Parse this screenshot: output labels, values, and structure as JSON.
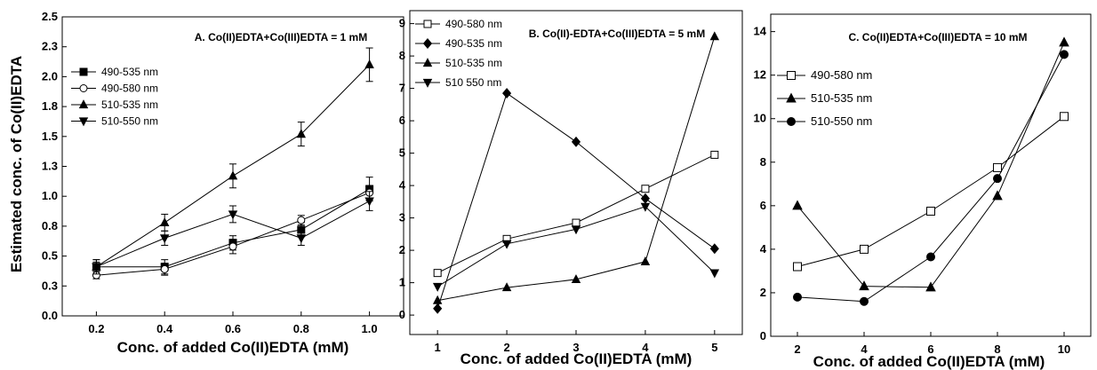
{
  "chart_data": [
    {
      "type": "line",
      "title": "A. Co(II)EDTA+Co(III)EDTA = 1 mM",
      "xlabel": "Conc. of added Co(II)EDTA (mM)",
      "ylabel": "Estimated conc. of Co(II)EDTA",
      "x": [
        0.2,
        0.4,
        0.6,
        0.8,
        1.0
      ],
      "xticks": [
        "0.2",
        "0.4",
        "0.6",
        "0.8",
        "1.0"
      ],
      "yticks": [
        "0.0",
        "0.3",
        "0.5",
        "0.8",
        "1.0",
        "1.3",
        "1.5",
        "1.8",
        "2.0",
        "2.3",
        "2.5"
      ],
      "xlim": [
        0.1,
        1.1
      ],
      "ylim": [
        0,
        2.5
      ],
      "legend_position": "left",
      "series": [
        {
          "name": "490-535 nm",
          "marker": "square-filled",
          "values": [
            0.41,
            0.41,
            0.61,
            0.72,
            1.06
          ],
          "errors": [
            0.06,
            0.06,
            0.06,
            0.06,
            0.1
          ]
        },
        {
          "name": "490-580 nm",
          "marker": "circle-open",
          "values": [
            0.34,
            0.39,
            0.58,
            0.8,
            1.03
          ],
          "errors": [
            0.03,
            0.05,
            0.06,
            0.04,
            0.06
          ]
        },
        {
          "name": "510-535 nm",
          "marker": "triangle-up-filled",
          "values": [
            0.41,
            0.78,
            1.17,
            1.52,
            2.1
          ],
          "errors": [
            0.06,
            0.07,
            0.1,
            0.1,
            0.14
          ]
        },
        {
          "name": "510-550 nm",
          "marker": "triangle-down-filled",
          "values": [
            0.41,
            0.65,
            0.85,
            0.65,
            0.96
          ],
          "errors": [
            0.04,
            0.06,
            0.07,
            0.06,
            0.08
          ]
        }
      ]
    },
    {
      "type": "line",
      "title": "B. Co(II)-EDTA+Co(III)EDTA = 5 mM",
      "xlabel": "Conc. of added Co(II)EDTA (mM)",
      "x": [
        1,
        2,
        3,
        4,
        5
      ],
      "xticks": [
        "1",
        "2",
        "3",
        "4",
        "5"
      ],
      "yticks": [
        "0",
        "1",
        "2",
        "3",
        "4",
        "5",
        "6",
        "7",
        "8",
        "9"
      ],
      "xlim": [
        0.6,
        5.4
      ],
      "ylim": [
        -0.6,
        9.4
      ],
      "legend_position": "top-left",
      "series": [
        {
          "name": "490-580 nm",
          "marker": "square-open",
          "values": [
            1.3,
            2.35,
            2.85,
            3.9,
            4.95
          ]
        },
        {
          "name": "490-535 nm",
          "marker": "diamond-filled",
          "values": [
            0.2,
            6.85,
            5.35,
            3.6,
            2.05
          ]
        },
        {
          "name": "510-535 nm",
          "marker": "triangle-up-filled",
          "values": [
            0.45,
            0.85,
            1.1,
            1.65,
            8.6
          ]
        },
        {
          "name": "510 550 nm",
          "marker": "triangle-down-filled",
          "values": [
            0.88,
            2.2,
            2.65,
            3.35,
            1.3
          ]
        }
      ]
    },
    {
      "type": "line",
      "title": "C.  Co(II)EDTA+Co(III)EDTA = 10 mM",
      "xlabel": "Conc. of added Co(II)EDTA (mM)",
      "x": [
        2,
        4,
        6,
        8,
        10
      ],
      "xticks": [
        "2",
        "4",
        "6",
        "8",
        "10"
      ],
      "yticks": [
        "0",
        "2",
        "4",
        "6",
        "8",
        "10",
        "12",
        "14"
      ],
      "xlim": [
        1.2,
        10.8
      ],
      "ylim": [
        0,
        14.8
      ],
      "legend_position": "top-left",
      "series": [
        {
          "name": "490-580 nm",
          "marker": "square-open",
          "values": [
            3.2,
            4.0,
            5.75,
            7.75,
            10.1
          ]
        },
        {
          "name": "510-535 nm",
          "marker": "triangle-up-filled",
          "values": [
            6.0,
            2.3,
            2.25,
            6.45,
            13.5
          ]
        },
        {
          "name": "510-550 nm",
          "marker": "circle-filled",
          "values": [
            1.8,
            1.6,
            3.65,
            7.25,
            12.95
          ]
        }
      ]
    }
  ]
}
